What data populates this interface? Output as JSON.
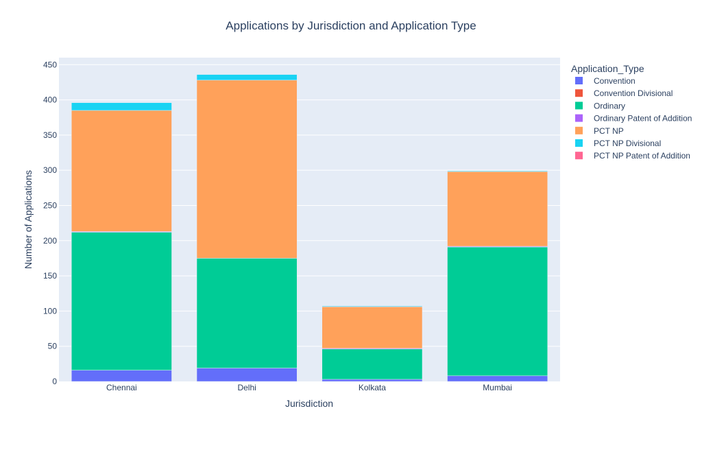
{
  "chart_data": {
    "type": "bar",
    "barmode": "stack",
    "title": "Applications by Jurisdiction and Application Type",
    "xlabel": "Jurisdiction",
    "ylabel": "Number of Applications",
    "ylim": [
      0,
      460
    ],
    "yticks": [
      0,
      50,
      100,
      150,
      200,
      250,
      300,
      350,
      400,
      450
    ],
    "grid": true,
    "legend_position": "right",
    "legend_title": "Application_Type",
    "categories": [
      "Chennai",
      "Delhi",
      "Kolkata",
      "Mumbai"
    ],
    "series": [
      {
        "name": "Convention",
        "color": "#636efa",
        "values": [
          16,
          19,
          3,
          8
        ]
      },
      {
        "name": "Convention Divisional",
        "color": "#EF553B",
        "values": [
          0,
          0,
          0,
          0
        ]
      },
      {
        "name": "Ordinary",
        "color": "#00cc96",
        "values": [
          196,
          156,
          43,
          183
        ]
      },
      {
        "name": "Ordinary Patent of Addition",
        "color": "#ab63fa",
        "values": [
          1,
          0,
          1,
          1
        ]
      },
      {
        "name": "PCT NP",
        "color": "#FFA15A",
        "values": [
          172,
          253,
          59,
          106
        ]
      },
      {
        "name": "PCT NP Divisional",
        "color": "#19d3f3",
        "values": [
          11,
          8,
          1,
          1
        ]
      },
      {
        "name": "PCT NP Patent of Addition",
        "color": "#FF6692",
        "values": [
          0,
          0,
          0,
          0
        ]
      }
    ]
  }
}
